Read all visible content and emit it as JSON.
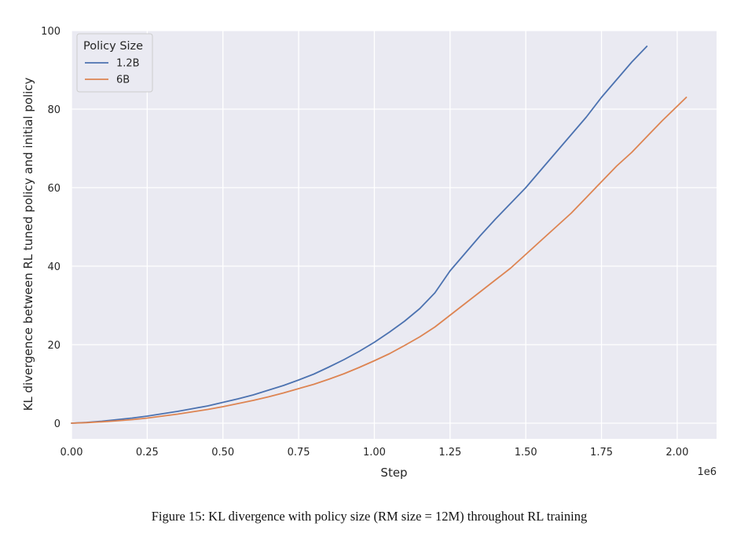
{
  "caption": "Figure 15: KL divergence with policy size (RM size = 12M) throughout RL training",
  "chart_data": {
    "type": "line",
    "title": "",
    "xlabel": "Step",
    "ylabel": "KL divergence between RL tuned policy and initial policy",
    "x_offset_label": "1e6",
    "xlim": [
      0,
      2.13
    ],
    "ylim": [
      -4,
      100
    ],
    "xticks": [
      0,
      0.25,
      0.5,
      0.75,
      1.0,
      1.25,
      1.5,
      1.75,
      2.0
    ],
    "xtick_labels": [
      "0.00",
      "0.25",
      "0.50",
      "0.75",
      "1.00",
      "1.25",
      "1.50",
      "1.75",
      "2.00"
    ],
    "yticks": [
      0,
      20,
      40,
      60,
      80,
      100
    ],
    "ytick_labels": [
      "0",
      "20",
      "40",
      "60",
      "80",
      "100"
    ],
    "grid": true,
    "legend": {
      "title": "Policy Size",
      "placement": "top-left"
    },
    "series": [
      {
        "name": "1.2B",
        "color": "#4c72b0",
        "x": [
          0,
          0.05,
          0.1,
          0.15,
          0.2,
          0.25,
          0.3,
          0.35,
          0.4,
          0.45,
          0.5,
          0.55,
          0.6,
          0.65,
          0.7,
          0.75,
          0.8,
          0.85,
          0.9,
          0.95,
          1.0,
          1.05,
          1.1,
          1.15,
          1.2,
          1.25,
          1.3,
          1.35,
          1.4,
          1.45,
          1.5,
          1.55,
          1.6,
          1.65,
          1.7,
          1.75,
          1.8,
          1.85,
          1.9
        ],
        "y": [
          0,
          0.2,
          0.5,
          0.9,
          1.3,
          1.8,
          2.4,
          3.0,
          3.7,
          4.4,
          5.3,
          6.2,
          7.2,
          8.4,
          9.6,
          11.0,
          12.5,
          14.3,
          16.2,
          18.3,
          20.6,
          23.2,
          26.0,
          29.2,
          33.2,
          38.8,
          43.3,
          47.8,
          52.0,
          56.0,
          60.0,
          64.5,
          69.0,
          73.5,
          78.0,
          83.0,
          87.5,
          92.0,
          96.0
        ]
      },
      {
        "name": "6B",
        "color": "#dd8452",
        "x": [
          0,
          0.05,
          0.1,
          0.15,
          0.2,
          0.25,
          0.3,
          0.35,
          0.4,
          0.45,
          0.5,
          0.55,
          0.6,
          0.65,
          0.7,
          0.75,
          0.8,
          0.85,
          0.9,
          0.95,
          1.0,
          1.05,
          1.1,
          1.15,
          1.2,
          1.25,
          1.3,
          1.35,
          1.4,
          1.45,
          1.5,
          1.55,
          1.6,
          1.65,
          1.7,
          1.75,
          1.8,
          1.85,
          1.9,
          1.95,
          2.03
        ],
        "y": [
          0,
          0.15,
          0.35,
          0.6,
          0.9,
          1.3,
          1.8,
          2.3,
          2.9,
          3.5,
          4.2,
          5.0,
          5.8,
          6.7,
          7.7,
          8.8,
          9.9,
          11.2,
          12.6,
          14.2,
          15.9,
          17.7,
          19.8,
          22.0,
          24.5,
          27.5,
          30.5,
          33.5,
          36.5,
          39.5,
          43.0,
          46.5,
          50.0,
          53.5,
          57.5,
          61.5,
          65.5,
          69.0,
          73.0,
          77.0,
          83.0
        ]
      }
    ]
  }
}
